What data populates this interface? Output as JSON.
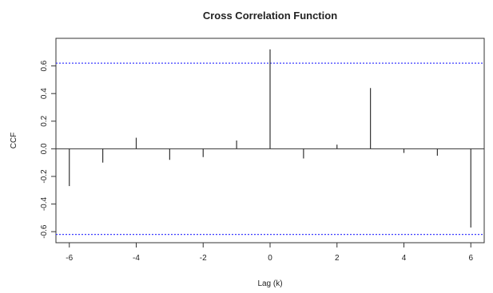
{
  "chart_data": {
    "type": "bar",
    "title": "Cross Correlation Function",
    "xlabel": "Lag (k)",
    "ylabel": "CCF",
    "xlim": [
      -6.4,
      6.4
    ],
    "ylim": [
      -0.68,
      0.8
    ],
    "x_ticks": [
      -6,
      -4,
      -2,
      0,
      2,
      4,
      6
    ],
    "x_tick_labels": [
      "-6",
      "-4",
      "-2",
      "0",
      "2",
      "4",
      "6"
    ],
    "y_ticks": [
      -0.6,
      -0.4,
      -0.2,
      0.0,
      0.2,
      0.4,
      0.6
    ],
    "y_tick_labels": [
      "-0.6",
      "-0.4",
      "-0.2",
      "0.0",
      "0.2",
      "0.4",
      "0.6"
    ],
    "lags": [
      -6,
      -5,
      -4,
      -3,
      -2,
      -1,
      0,
      1,
      2,
      3,
      4,
      5,
      6
    ],
    "values": [
      -0.27,
      -0.1,
      0.08,
      -0.08,
      -0.06,
      0.06,
      0.72,
      -0.07,
      0.03,
      0.44,
      -0.03,
      -0.05,
      -0.57
    ],
    "confidence_bounds": [
      0.62,
      -0.62
    ],
    "grid": false,
    "colors": {
      "bars": "#333333",
      "bounds": "#3b3bff",
      "axis": "#333333"
    }
  }
}
